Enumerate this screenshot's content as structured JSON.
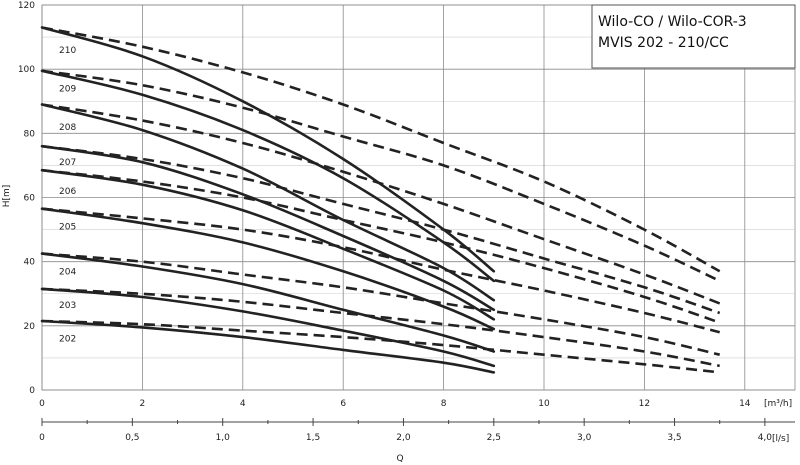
{
  "chart_data": {
    "type": "line",
    "title_lines": [
      "Wilo-CO / Wilo-COR-3",
      "MVIS 202 - 210/CC"
    ],
    "ylabel": "H[m]",
    "xlabel": "Q",
    "x_units": [
      "[m³/h]",
      "[l/s]"
    ],
    "xlim": [
      0,
      15
    ],
    "ylim": [
      0,
      120
    ],
    "x_ticks": [
      0,
      2,
      4,
      6,
      8,
      10,
      12,
      14
    ],
    "x_tick_labels": [
      "0",
      "2",
      "4",
      "6",
      "8",
      "10",
      "12",
      "14"
    ],
    "x2_ticks": [
      0,
      0.5,
      1.0,
      1.5,
      2.0,
      2.5,
      3.0,
      3.5,
      4.0
    ],
    "x2_tick_labels": [
      "0",
      "0,5",
      "1,0",
      "1,5",
      "2,0",
      "2,5",
      "3,0",
      "3,5",
      "4,0"
    ],
    "y_ticks": [
      0,
      20,
      40,
      60,
      80,
      100,
      120
    ],
    "y_tick_labels": [
      "0",
      "20",
      "40",
      "60",
      "80",
      "100",
      "120"
    ],
    "grid": true,
    "series": [
      {
        "name": "210",
        "label_at": [
          0.3,
          106
        ],
        "solid": [
          [
            0,
            113
          ],
          [
            2,
            104
          ],
          [
            4,
            90
          ],
          [
            6,
            72
          ],
          [
            8,
            50
          ],
          [
            9,
            37
          ]
        ],
        "dashed": [
          [
            0,
            113
          ],
          [
            2,
            107
          ],
          [
            4,
            99
          ],
          [
            6,
            89
          ],
          [
            8,
            77
          ],
          [
            10,
            65
          ],
          [
            12,
            50
          ],
          [
            13.5,
            37
          ]
        ]
      },
      {
        "name": "209",
        "label_at": [
          0.3,
          94
        ],
        "solid": [
          [
            0,
            99.5
          ],
          [
            2,
            92
          ],
          [
            4,
            81
          ],
          [
            6,
            66
          ],
          [
            8,
            46
          ],
          [
            9,
            34
          ]
        ],
        "dashed": [
          [
            0,
            99.5
          ],
          [
            2,
            95
          ],
          [
            4,
            88
          ],
          [
            6,
            79
          ],
          [
            8,
            70
          ],
          [
            10,
            58
          ],
          [
            12,
            45
          ],
          [
            13.5,
            34
          ]
        ]
      },
      {
        "name": "208",
        "label_at": [
          0.3,
          82
        ],
        "solid": [
          [
            0,
            89
          ],
          [
            2,
            81
          ],
          [
            4,
            69
          ],
          [
            6,
            53
          ],
          [
            8,
            38
          ],
          [
            9,
            28
          ]
        ],
        "dashed": [
          [
            0,
            89
          ],
          [
            2,
            84
          ],
          [
            4,
            77
          ],
          [
            6,
            68
          ],
          [
            8,
            58
          ],
          [
            10,
            47
          ],
          [
            12,
            36
          ],
          [
            13.5,
            27
          ]
        ]
      },
      {
        "name": "207",
        "label_at": [
          0.3,
          71
        ],
        "solid": [
          [
            0,
            76
          ],
          [
            2,
            71
          ],
          [
            4,
            61
          ],
          [
            6,
            48
          ],
          [
            8,
            34
          ],
          [
            9,
            25
          ]
        ],
        "dashed": [
          [
            0,
            76
          ],
          [
            2,
            72
          ],
          [
            4,
            66
          ],
          [
            6,
            58
          ],
          [
            8,
            50
          ],
          [
            10,
            41
          ],
          [
            12,
            32
          ],
          [
            13.5,
            24
          ]
        ]
      },
      {
        "name": "206",
        "label_at": [
          0.3,
          62
        ],
        "solid": [
          [
            0,
            68.5
          ],
          [
            2,
            64
          ],
          [
            4,
            56
          ],
          [
            6,
            44
          ],
          [
            8,
            31
          ],
          [
            9,
            22
          ]
        ],
        "dashed": [
          [
            0,
            68.5
          ],
          [
            2,
            65
          ],
          [
            4,
            60
          ],
          [
            6,
            53
          ],
          [
            8,
            46
          ],
          [
            10,
            38
          ],
          [
            12,
            29
          ],
          [
            13.5,
            21
          ]
        ]
      },
      {
        "name": "205",
        "label_at": [
          0.3,
          51
        ],
        "solid": [
          [
            0,
            56.5
          ],
          [
            2,
            52
          ],
          [
            4,
            46
          ],
          [
            6,
            37
          ],
          [
            8,
            26
          ],
          [
            9,
            19
          ]
        ],
        "dashed": [
          [
            0,
            56.5
          ],
          [
            2,
            53.5
          ],
          [
            4,
            50
          ],
          [
            6,
            44.5
          ],
          [
            8,
            37.5
          ],
          [
            10,
            31
          ],
          [
            12,
            24
          ],
          [
            13.5,
            18
          ]
        ]
      },
      {
        "name": "204",
        "label_at": [
          0.3,
          37
        ],
        "solid": [
          [
            0,
            42.5
          ],
          [
            2,
            38.5
          ],
          [
            4,
            33
          ],
          [
            6,
            25
          ],
          [
            8,
            17
          ],
          [
            9,
            12
          ]
        ],
        "dashed": [
          [
            0,
            42.5
          ],
          [
            2,
            40
          ],
          [
            4,
            36
          ],
          [
            6,
            32
          ],
          [
            8,
            27
          ],
          [
            10,
            22
          ],
          [
            12,
            16.5
          ],
          [
            13.5,
            11
          ]
        ]
      },
      {
        "name": "203",
        "label_at": [
          0.3,
          26.5
        ],
        "solid": [
          [
            0,
            31.5
          ],
          [
            2,
            29
          ],
          [
            4,
            24.5
          ],
          [
            6,
            18.5
          ],
          [
            8,
            12
          ],
          [
            9,
            7.5
          ]
        ],
        "dashed": [
          [
            0,
            31.5
          ],
          [
            2,
            30
          ],
          [
            4,
            27.5
          ],
          [
            6,
            24
          ],
          [
            8,
            20.5
          ],
          [
            10,
            16.5
          ],
          [
            12,
            12
          ],
          [
            13.5,
            7.5
          ]
        ]
      },
      {
        "name": "202",
        "label_at": [
          0.3,
          16
        ],
        "solid": [
          [
            0,
            21.5
          ],
          [
            2,
            19.5
          ],
          [
            4,
            16.5
          ],
          [
            6,
            12.5
          ],
          [
            8,
            8.5
          ],
          [
            9,
            5.5
          ]
        ],
        "dashed": [
          [
            0,
            21.5
          ],
          [
            2,
            20.5
          ],
          [
            4,
            18.5
          ],
          [
            6,
            16.5
          ],
          [
            8,
            14
          ],
          [
            10,
            11
          ],
          [
            12,
            8
          ],
          [
            13.5,
            5.5
          ]
        ]
      }
    ]
  }
}
